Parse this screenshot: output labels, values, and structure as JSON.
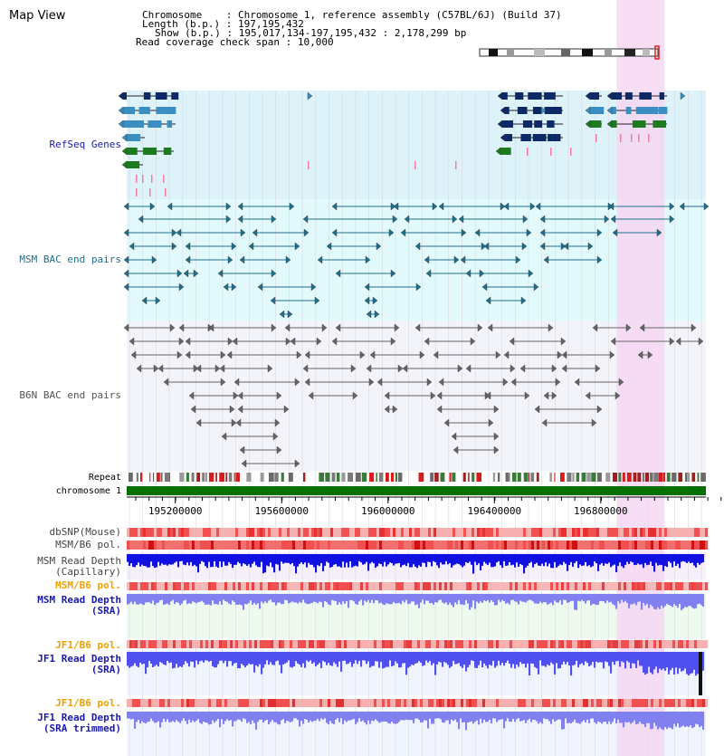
{
  "page": {
    "title": "Map View"
  },
  "info": {
    "chromosome_label": "Chromosome",
    "chromosome_value": "Chromosome 1, reference assembly (C57BL/6J) (Build 37)",
    "length_label": "Length (b.p.)",
    "length_value": "197,195,432",
    "show_label": "Show (b.p.)",
    "show_value": "195,017,134-197,195,432 : 2,178,299 bp",
    "coverage_label": "Read coverage check span",
    "coverage_value": "10,000"
  },
  "tracks": {
    "refseq": "RefSeq Genes",
    "msm_bac": "MSM BAC end pairs",
    "b6n_bac": "B6N BAC end pairs",
    "repeat": "Repeat",
    "chromosome": "chromosome 1",
    "dbsnp": "dbSNP(Mouse)",
    "msm_b6_pol": "MSM/B6 pol.",
    "msm_depth_cap_1": "MSM Read Depth",
    "msm_depth_cap_2": "(Capillary)",
    "msm_b6_pol_2": "MSM/B6 pol.",
    "msm_depth_sra_1": "MSM Read Depth",
    "msm_depth_sra_2": "(SRA)",
    "jf1_b6_pol": "JF1/B6 pol.",
    "jf1_depth_sra_1": "JF1 Read Depth",
    "jf1_depth_sra_2": "(SRA)",
    "jf1_b6_pol_2": "JF1/B6 pol.",
    "jf1_depth_trim_1": "JF1 Read Depth",
    "jf1_depth_trim_2": "(SRA trimmed)"
  },
  "axis": {
    "start_bp": 195017134,
    "end_bp": 197195432,
    "ticks": [
      {
        "label": "195200000",
        "bp": 195200000
      },
      {
        "label": "195600000",
        "bp": 195600000
      },
      {
        "label": "196000000",
        "bp": 196000000
      },
      {
        "label": "196400000",
        "bp": 196400000
      },
      {
        "label": "196800000",
        "bp": 196800000
      }
    ]
  },
  "highlight": {
    "start_bp": 196860000,
    "end_bp": 197040000
  },
  "colors": {
    "refseq_bg": "#def2fa",
    "msm_bg": "#e3fafc",
    "b6n_bg": "#f3f3fa",
    "gene_dark": "#0d2a66",
    "gene_mid": "#3b8fc0",
    "gene_green": "#1e7a1e",
    "msm_line": "#1f6e8c",
    "b6n_line": "#666666",
    "highlight": "#f5d6f2",
    "chromosome": "#007000",
    "label_blue": "#1a1aaa",
    "label_teal": "#1f6e8c",
    "label_gray": "#555555",
    "label_orange": "#f0a000"
  }
}
